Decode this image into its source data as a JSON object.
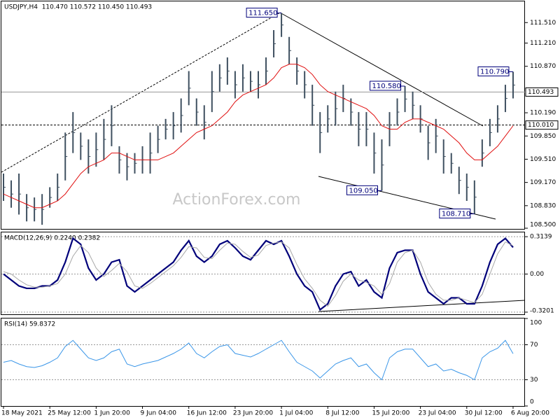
{
  "chart_data": [
    {
      "type": "range-bar",
      "title": "USDJPY,H4  110.470 110.572 110.450 110.493",
      "watermark": "ActionForex.com",
      "color": "#3f5060",
      "categories": [
        "18 May 2021",
        null,
        null,
        null,
        null,
        null,
        "25 May 12:00",
        null,
        null,
        null,
        null,
        null,
        "1 Jun 20:00",
        null,
        null,
        null,
        null,
        null,
        "9 Jun 04:00",
        null,
        null,
        null,
        null,
        null,
        "16 Jun 12:00",
        null,
        null,
        null,
        null,
        null,
        "23 Jun 20:00",
        null,
        null,
        null,
        null,
        null,
        "1 Jul 04:00",
        null,
        null,
        null,
        null,
        null,
        "8 Jul 12:00",
        null,
        null,
        null,
        null,
        null,
        "15 Jul 20:00",
        null,
        null,
        null,
        null,
        null,
        "23 Jul 04:00",
        null,
        null,
        null,
        null,
        null,
        "30 Jul 12:00",
        null,
        null,
        null,
        null,
        null,
        "6 Aug 20:00"
      ],
      "high": [
        109.3,
        109.2,
        109.3,
        109.0,
        108.95,
        109.0,
        109.1,
        109.3,
        109.9,
        110.2,
        109.9,
        109.8,
        109.9,
        110.1,
        110.3,
        109.7,
        109.6,
        109.6,
        109.7,
        109.9,
        110.0,
        110.1,
        110.2,
        110.4,
        110.8,
        110.4,
        110.3,
        110.8,
        110.9,
        111.0,
        110.8,
        110.9,
        110.8,
        110.8,
        111.0,
        111.4,
        111.65,
        111.3,
        111.0,
        110.8,
        110.6,
        110.2,
        110.3,
        110.5,
        110.6,
        110.4,
        110.2,
        110.2,
        109.9,
        109.8,
        110.2,
        110.4,
        110.58,
        110.5,
        110.3,
        110.0,
        110.1,
        109.8,
        109.6,
        109.4,
        109.3,
        109.2,
        109.8,
        110.1,
        110.3,
        110.6,
        110.79
      ],
      "low": [
        108.9,
        108.8,
        108.7,
        108.6,
        108.6,
        108.55,
        108.8,
        108.9,
        109.2,
        109.6,
        109.5,
        109.3,
        109.4,
        109.5,
        109.7,
        109.3,
        109.2,
        109.3,
        109.3,
        109.3,
        109.6,
        109.8,
        109.8,
        109.9,
        110.3,
        110.0,
        109.8,
        110.2,
        110.5,
        110.6,
        110.4,
        110.5,
        110.5,
        110.4,
        110.6,
        111.0,
        111.3,
        110.9,
        110.6,
        110.4,
        110.0,
        109.6,
        109.9,
        110.0,
        110.2,
        110.0,
        109.7,
        109.7,
        109.3,
        109.05,
        109.7,
        110.0,
        110.2,
        110.1,
        109.9,
        109.5,
        109.6,
        109.3,
        109.3,
        109.0,
        108.9,
        108.71,
        109.4,
        109.7,
        109.9,
        110.2,
        110.4
      ],
      "ma": {
        "color": "#e01010",
        "values": [
          109.0,
          108.95,
          108.9,
          108.85,
          108.8,
          108.8,
          108.85,
          108.9,
          109.0,
          109.15,
          109.3,
          109.4,
          109.45,
          109.5,
          109.6,
          109.6,
          109.55,
          109.5,
          109.5,
          109.5,
          109.5,
          109.55,
          109.6,
          109.7,
          109.8,
          109.9,
          109.95,
          110.0,
          110.1,
          110.2,
          110.35,
          110.45,
          110.5,
          110.55,
          110.6,
          110.7,
          110.85,
          110.9,
          110.9,
          110.85,
          110.75,
          110.6,
          110.5,
          110.45,
          110.4,
          110.35,
          110.3,
          110.25,
          110.15,
          110.0,
          109.95,
          109.95,
          110.05,
          110.1,
          110.1,
          110.05,
          110.0,
          109.95,
          109.85,
          109.75,
          109.6,
          109.5,
          109.5,
          109.6,
          109.7,
          109.85,
          110.0
        ]
      },
      "ylim": [
        108.49,
        111.82
      ],
      "yticks": [
        {
          "value": 111.51,
          "label": "111.510"
        },
        {
          "value": 111.21,
          "label": "111.210"
        },
        {
          "value": 110.87,
          "label": "110.870"
        },
        {
          "value": 110.19,
          "label": "110.190"
        },
        {
          "value": 109.85,
          "label": "109.850"
        },
        {
          "value": 109.51,
          "label": "109.510"
        },
        {
          "value": 109.17,
          "label": "109.170"
        },
        {
          "value": 108.83,
          "label": "108.830"
        },
        {
          "value": 108.5,
          "label": "108.500"
        }
      ],
      "levels": [
        {
          "value": 110.493,
          "label": "110.493"
        },
        {
          "value": 110.01,
          "label": "110.010"
        }
      ],
      "annotations": [
        {
          "value": 111.65,
          "label": "111.650"
        },
        {
          "value": 110.58,
          "label": "110.580"
        },
        {
          "value": 109.05,
          "label": "109.050"
        },
        {
          "value": 108.71,
          "label": "108.710"
        },
        {
          "value": 110.79,
          "label": "110.790"
        }
      ]
    },
    {
      "type": "line",
      "title": "MACD(12,26,9) 0.2240 0.2382",
      "series": [
        {
          "color": "#00007a",
          "values": [
            0.0,
            -0.05,
            -0.1,
            -0.12,
            -0.12,
            -0.1,
            -0.1,
            -0.05,
            0.1,
            0.3,
            0.25,
            0.05,
            -0.05,
            0.0,
            0.1,
            0.12,
            -0.1,
            -0.15,
            -0.1,
            -0.05,
            0.0,
            0.05,
            0.1,
            0.2,
            0.28,
            0.15,
            0.1,
            0.15,
            0.25,
            0.28,
            0.22,
            0.15,
            0.12,
            0.2,
            0.28,
            0.25,
            0.28,
            0.15,
            0.0,
            -0.1,
            -0.15,
            -0.3,
            -0.25,
            -0.1,
            0.0,
            0.02,
            -0.1,
            -0.05,
            -0.15,
            -0.2,
            0.05,
            0.18,
            0.2,
            0.2,
            0.0,
            -0.15,
            -0.2,
            -0.25,
            -0.2,
            -0.2,
            -0.25,
            -0.25,
            -0.1,
            0.1,
            0.25,
            0.3,
            0.224
          ]
        },
        {
          "color": "#a8a8a8",
          "values": [
            0.02,
            0.0,
            -0.05,
            -0.09,
            -0.11,
            -0.11,
            -0.1,
            -0.08,
            0.0,
            0.15,
            0.24,
            0.18,
            0.05,
            -0.02,
            0.03,
            0.09,
            0.02,
            -0.1,
            -0.12,
            -0.08,
            -0.03,
            0.02,
            0.07,
            0.14,
            0.23,
            0.22,
            0.14,
            0.13,
            0.2,
            0.26,
            0.25,
            0.19,
            0.14,
            0.16,
            0.24,
            0.26,
            0.27,
            0.22,
            0.08,
            -0.04,
            -0.12,
            -0.22,
            -0.27,
            -0.18,
            -0.06,
            0.0,
            -0.05,
            -0.07,
            -0.1,
            -0.17,
            -0.08,
            0.1,
            0.18,
            0.2,
            0.1,
            -0.07,
            -0.17,
            -0.22,
            -0.22,
            -0.2,
            -0.22,
            -0.24,
            -0.17,
            0.0,
            0.17,
            0.27,
            0.238
          ]
        }
      ],
      "ylim": [
        -0.344,
        0.35
      ],
      "yticks": [
        0.3139,
        {
          "value": 0,
          "label": "0.00"
        },
        -0.3201
      ]
    },
    {
      "type": "line",
      "title": "RSI(14) 59.8372",
      "series": [
        {
          "color": "#3a96e8",
          "values": [
            50,
            52,
            48,
            45,
            44,
            46,
            50,
            55,
            68,
            75,
            65,
            55,
            52,
            55,
            62,
            65,
            48,
            45,
            48,
            50,
            52,
            56,
            60,
            65,
            72,
            60,
            55,
            62,
            68,
            70,
            60,
            58,
            56,
            60,
            65,
            70,
            75,
            62,
            50,
            45,
            40,
            32,
            40,
            48,
            52,
            55,
            45,
            48,
            38,
            30,
            55,
            62,
            65,
            65,
            55,
            45,
            48,
            40,
            42,
            38,
            35,
            30,
            55,
            62,
            66,
            75,
            59.8372
          ]
        }
      ],
      "ylim": [
        0,
        100
      ],
      "yticks": [
        100,
        70,
        30,
        0
      ]
    }
  ]
}
